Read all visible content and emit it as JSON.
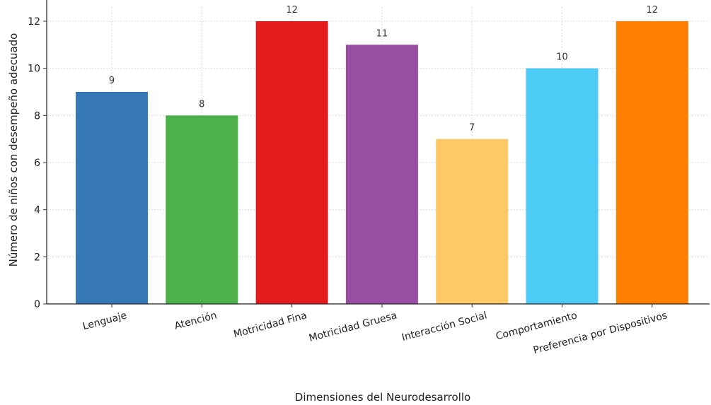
{
  "chart_data": {
    "type": "bar",
    "categories": [
      "Lenguaje",
      "Atención",
      "Motricidad Fina",
      "Motricidad Gruesa",
      "Interacción Social",
      "Comportamiento",
      "Preferencia por Dispositivos"
    ],
    "values": [
      9,
      8,
      12,
      11,
      7,
      10,
      12
    ],
    "colors": [
      "#3778b7",
      "#4db04a",
      "#e41a1c",
      "#984ea3",
      "#fdc865",
      "#4ccbf7",
      "#ff7f00"
    ],
    "title": "",
    "xlabel": "Dimensiones del Neurodesarrollo",
    "ylabel": "Número de niños con desempeño adecuado",
    "ylim": [
      0,
      12.6
    ],
    "yticks": [
      0,
      2,
      4,
      6,
      8,
      10,
      12
    ],
    "grid": true,
    "data_labels": true
  }
}
